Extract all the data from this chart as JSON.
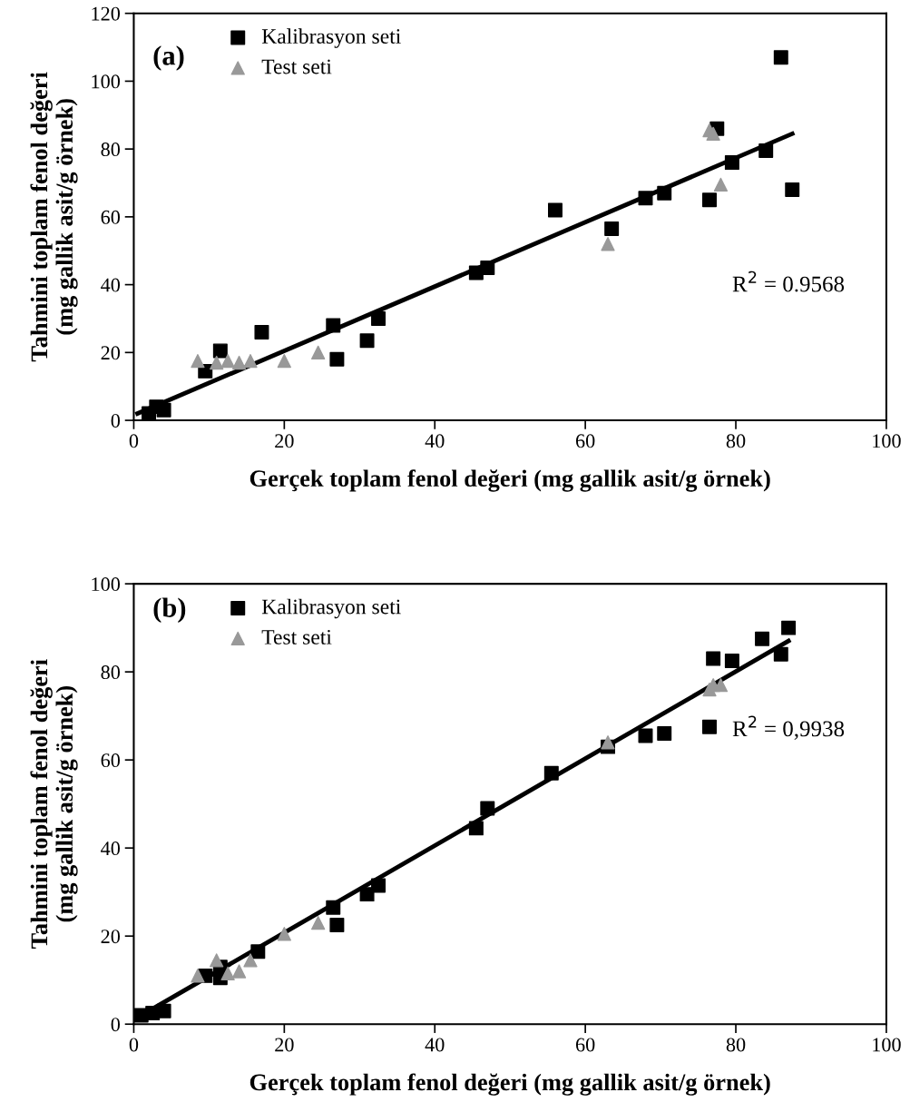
{
  "chart_data": [
    {
      "type": "scatter",
      "xlabel": "Gerçek toplam fenol değeri (mg gallik asit/g örnek)",
      "ylabel": "Tahmini toplam fenol değeri\n(mg gallik asit/g örnek)",
      "xlim": [
        0,
        100
      ],
      "ylim": [
        0,
        120
      ],
      "xticks": [
        0,
        20,
        40,
        60,
        80,
        100
      ],
      "yticks": [
        0,
        20,
        40,
        60,
        80,
        100,
        120
      ],
      "grid": false,
      "legend": "top left",
      "annotations": [
        "(a)",
        "R$^{2}$ = 0.9568"
      ],
      "series": [
        {
          "name": "Kalibrasyon seti",
          "color": "#000000",
          "marker": "square",
          "x": [
            2,
            3,
            4,
            9.5,
            11.5,
            17,
            26.5,
            27,
            31,
            32.5,
            45.5,
            47,
            56,
            63.5,
            68,
            70.5,
            76.5,
            77.5,
            79.5,
            84,
            86,
            87.5
          ],
          "values": [
            2,
            4,
            3,
            14.5,
            20.5,
            26,
            28,
            18,
            23.5,
            30,
            43.5,
            45,
            62,
            56.5,
            65.5,
            67,
            65,
            86,
            76,
            79.5,
            107,
            68
          ]
        },
        {
          "name": "Test seti",
          "color": "#999999",
          "marker": "triangle",
          "x": [
            8.5,
            11,
            12.5,
            14,
            15.5,
            20,
            24.5,
            63,
            76.5,
            77,
            78
          ],
          "values": [
            17.5,
            17,
            17.5,
            17,
            17.5,
            17.5,
            20,
            52,
            85.5,
            84.5,
            69.5
          ]
        },
        {
          "type": "line",
          "color": "#000000",
          "marker": "none",
          "x": [
            0.5,
            87.5
          ],
          "values": [
            2,
            84.5
          ]
        }
      ]
    },
    {
      "type": "scatter",
      "xlabel": "Gerçek toplam fenol değeri (mg gallik asit/g örnek)",
      "ylabel": "Tahmini toplam fenol değeri\n(mg gallik asit/g örnek)",
      "xlim": [
        0,
        100
      ],
      "ylim": [
        0,
        100
      ],
      "xticks": [
        0,
        20,
        40,
        60,
        80,
        100
      ],
      "yticks": [
        0,
        20,
        40,
        60,
        80,
        100
      ],
      "grid": false,
      "legend": "top left",
      "annotations": [
        "(b)",
        "R$^{2}$ = 0,9938"
      ],
      "series": [
        {
          "name": "Kalibrasyon seti",
          "color": "#000000",
          "marker": "square",
          "x": [
            1,
            2.5,
            4,
            9.5,
            11.5,
            11.5,
            16.5,
            26.5,
            27,
            31,
            32.5,
            45.5,
            47,
            55.5,
            63,
            68,
            70.5,
            76.5,
            77,
            79.5,
            83.5,
            86,
            87
          ],
          "values": [
            2,
            2.5,
            3,
            11,
            10.5,
            13,
            16.5,
            26.5,
            22.5,
            29.5,
            31.5,
            44.5,
            49,
            57,
            63,
            65.5,
            66,
            67.5,
            83,
            82.5,
            87.5,
            84,
            90
          ]
        },
        {
          "name": "Test seti",
          "color": "#999999",
          "marker": "triangle",
          "x": [
            8.5,
            11,
            12.5,
            14,
            15.5,
            20,
            24.5,
            63,
            76.5,
            77,
            78
          ],
          "values": [
            11,
            14.5,
            11.5,
            12,
            14.5,
            20.5,
            23,
            64,
            76,
            77,
            77
          ]
        },
        {
          "type": "line",
          "color": "#000000",
          "marker": "none",
          "x": [
            0.5,
            87
          ],
          "values": [
            1.5,
            87
          ]
        }
      ]
    }
  ]
}
